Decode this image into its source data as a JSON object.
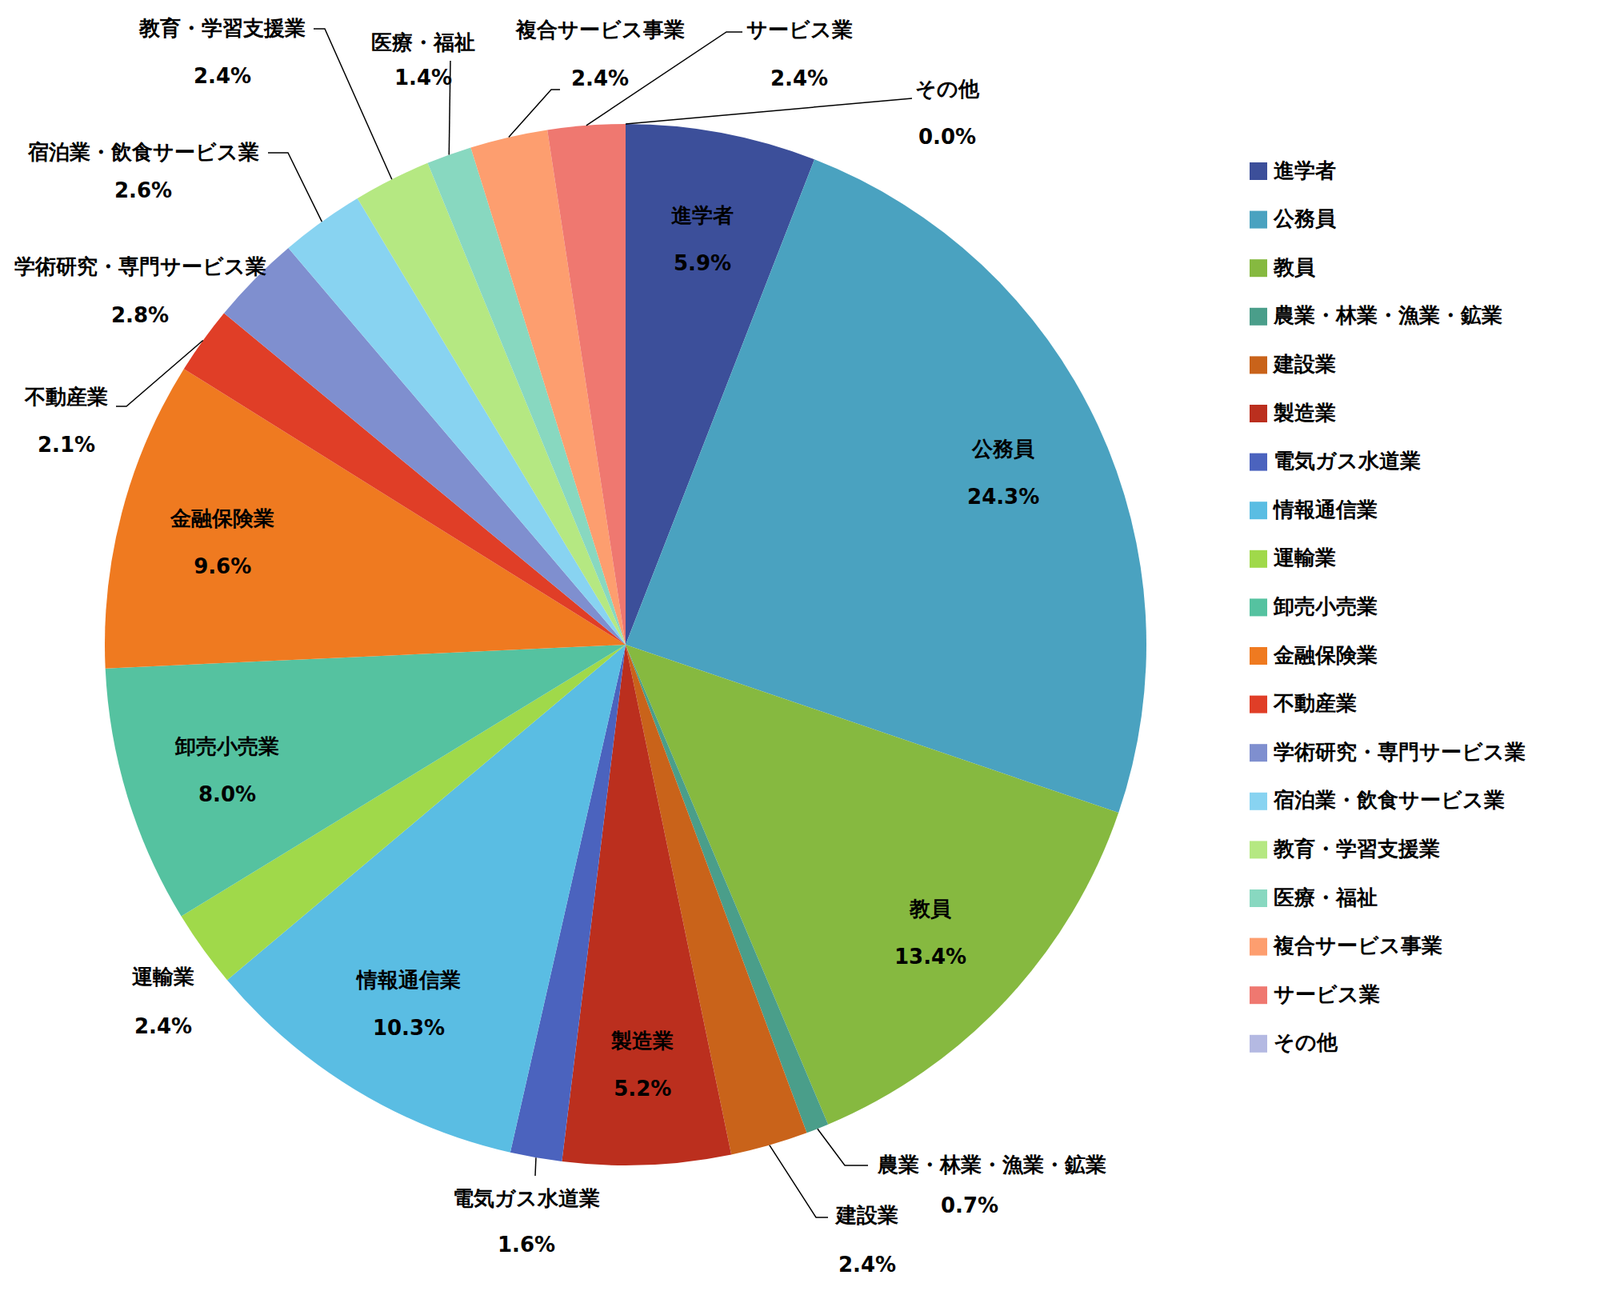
{
  "chart_data": {
    "type": "pie",
    "categories": [
      "進学者",
      "公務員",
      "教員",
      "農業・林業・漁業・鉱業",
      "建設業",
      "製造業",
      "電気ガス水道業",
      "情報通信業",
      "運輸業",
      "卸売小売業",
      "金融保険業",
      "不動産業",
      "学術研究・専門サービス業",
      "宿泊業・飲食サービス業",
      "教育・学習支援業",
      "医療・福祉",
      "複合サービス事業",
      "サービス業",
      "その他"
    ],
    "values": [
      5.9,
      24.3,
      13.4,
      0.7,
      2.4,
      5.2,
      1.6,
      10.3,
      2.4,
      8.0,
      9.6,
      2.1,
      2.8,
      2.6,
      2.4,
      1.4,
      2.4,
      2.4,
      0.0
    ],
    "value_labels": [
      "5.9%",
      "24.3%",
      "13.4%",
      "0.7%",
      "2.4%",
      "5.2%",
      "1.6%",
      "10.3%",
      "2.4%",
      "8.0%",
      "9.6%",
      "2.1%",
      "2.8%",
      "2.6%",
      "2.4%",
      "1.4%",
      "2.4%",
      "2.4%",
      "0.0%"
    ],
    "colors": [
      "#3c4f9a",
      "#4aa2c0",
      "#86b940",
      "#4a9e8a",
      "#c9631a",
      "#bb2f1e",
      "#4b63be",
      "#5abde3",
      "#a0d94a",
      "#55c2a0",
      "#ef7a20",
      "#e03e27",
      "#7f8fcf",
      "#88d3f1",
      "#b5e882",
      "#88d8c0",
      "#fd9e6f",
      "#ef7870",
      "#b4b9e2"
    ],
    "data_labels": true,
    "legend": "right"
  }
}
